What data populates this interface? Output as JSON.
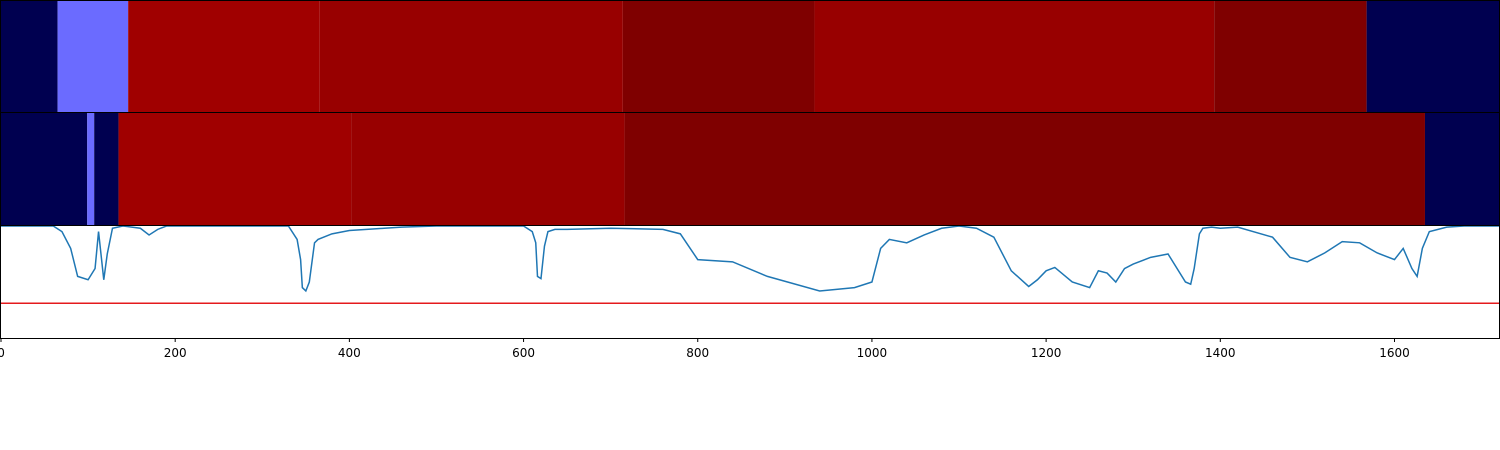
{
  "chart_data": {
    "type": "heatmap",
    "x_range": [
      0,
      1720
    ],
    "x_ticks": [
      0,
      200,
      400,
      600,
      800,
      1000,
      1200,
      1400,
      1600
    ],
    "x_tick_labels": [
      "0",
      "200",
      "400",
      "600",
      "800",
      "1000",
      "1200",
      "1400",
      "1600"
    ],
    "colors": {
      "navy": "#000050",
      "light_blue": "#6b6bff",
      "red": "#a00000",
      "mid_red": "#980000",
      "dark_red": "#7f0000",
      "line": "#1f77b4",
      "threshold": "#e41a1c"
    },
    "segment_rows": [
      {
        "segments": [
          {
            "start": 0,
            "end": 65,
            "color": "#000050"
          },
          {
            "start": 65,
            "end": 146,
            "color": "#6b6bff"
          },
          {
            "start": 146,
            "end": 366,
            "color": "#a00000"
          },
          {
            "start": 366,
            "end": 714,
            "color": "#980000"
          },
          {
            "start": 714,
            "end": 934,
            "color": "#7f0000"
          },
          {
            "start": 934,
            "end": 1393,
            "color": "#980000"
          },
          {
            "start": 1393,
            "end": 1568,
            "color": "#7f0000"
          },
          {
            "start": 1568,
            "end": 1720,
            "color": "#000050"
          }
        ]
      },
      {
        "segments": [
          {
            "start": 0,
            "end": 99,
            "color": "#000050"
          },
          {
            "start": 99,
            "end": 107,
            "color": "#6b6bff"
          },
          {
            "start": 107,
            "end": 135,
            "color": "#000050"
          },
          {
            "start": 135,
            "end": 402,
            "color": "#a00000"
          },
          {
            "start": 402,
            "end": 716,
            "color": "#980000"
          },
          {
            "start": 716,
            "end": 1635,
            "color": "#7f0000"
          },
          {
            "start": 1635,
            "end": 1720,
            "color": "#000050"
          }
        ]
      }
    ],
    "line_panel": {
      "ylim": [
        0,
        1
      ],
      "threshold": 0.31,
      "series": {
        "x": [
          0,
          60,
          70,
          80,
          88,
          100,
          108,
          112,
          118,
          122,
          128,
          140,
          160,
          170,
          180,
          190,
          200,
          260,
          300,
          330,
          340,
          344,
          346,
          350,
          354,
          360,
          364,
          380,
          400,
          420,
          440,
          460,
          500,
          560,
          600,
          610,
          614,
          616,
          620,
          624,
          628,
          636,
          650,
          700,
          760,
          780,
          800,
          840,
          880,
          940,
          980,
          1000,
          1010,
          1020,
          1040,
          1060,
          1080,
          1100,
          1120,
          1140,
          1160,
          1180,
          1190,
          1200,
          1210,
          1230,
          1250,
          1260,
          1270,
          1280,
          1290,
          1300,
          1320,
          1340,
          1360,
          1366,
          1370,
          1376,
          1380,
          1390,
          1400,
          1420,
          1460,
          1480,
          1500,
          1520,
          1540,
          1560,
          1580,
          1600,
          1610,
          1620,
          1626,
          1632,
          1640,
          1660,
          1680,
          1700,
          1720
        ],
        "y": [
          1.0,
          1.0,
          0.95,
          0.8,
          0.55,
          0.52,
          0.62,
          0.95,
          0.52,
          0.75,
          0.98,
          1.0,
          0.98,
          0.92,
          0.97,
          1.0,
          1.0,
          1.0,
          1.0,
          1.0,
          0.88,
          0.7,
          0.45,
          0.42,
          0.5,
          0.85,
          0.88,
          0.93,
          0.96,
          0.97,
          0.98,
          0.99,
          1.0,
          1.0,
          1.0,
          0.95,
          0.85,
          0.55,
          0.53,
          0.82,
          0.95,
          0.97,
          0.97,
          0.98,
          0.97,
          0.93,
          0.7,
          0.68,
          0.55,
          0.42,
          0.45,
          0.5,
          0.8,
          0.88,
          0.85,
          0.92,
          0.98,
          1.0,
          0.98,
          0.9,
          0.6,
          0.46,
          0.52,
          0.6,
          0.63,
          0.5,
          0.45,
          0.6,
          0.58,
          0.5,
          0.62,
          0.66,
          0.72,
          0.75,
          0.5,
          0.48,
          0.62,
          0.93,
          0.98,
          0.99,
          0.98,
          0.99,
          0.9,
          0.72,
          0.68,
          0.76,
          0.86,
          0.85,
          0.76,
          0.7,
          0.8,
          0.62,
          0.55,
          0.8,
          0.95,
          0.99,
          1.0,
          1.0,
          1.0
        ]
      }
    }
  }
}
